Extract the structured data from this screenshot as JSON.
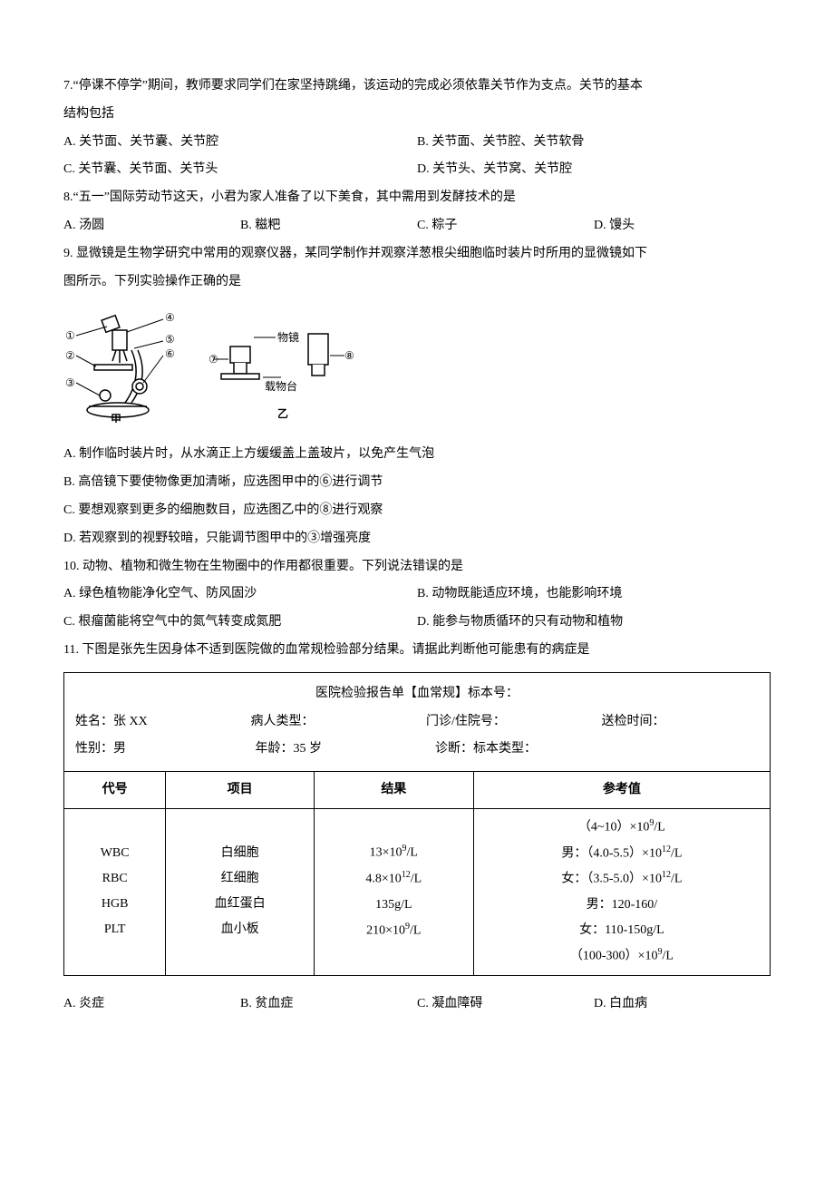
{
  "q7": {
    "stem_line1": "7.“停课不停学”期间，教师要求同学们在家坚持跳绳，该运动的完成必须依靠关节作为支点。关节的基本",
    "stem_line2": "结构包括",
    "optA": "A. 关节面、关节囊、关节腔",
    "optB": "B. 关节面、关节腔、关节软骨",
    "optC": "C. 关节囊、关节面、关节头",
    "optD": "D. 关节头、关节窝、关节腔"
  },
  "q8": {
    "stem": "8.“五一”国际劳动节这天，小君为家人准备了以下美食，其中需用到发酵技术的是",
    "optA": "A. 汤圆",
    "optB": "B. 糍粑",
    "optC": "C. 粽子",
    "optD": "D. 馒头"
  },
  "q9": {
    "stem_line1": "9. 显微镜是生物学研究中常用的观察仪器，某同学制作并观察洋葱根尖细胞临时装片时所用的显微镜如下",
    "stem_line2": "图所示。下列实验操作正确的是",
    "diagram": {
      "labels_left": [
        "①",
        "②",
        "③",
        "④",
        "⑤",
        "⑥"
      ],
      "labels_right": [
        "⑦",
        "⑧"
      ],
      "text_objective": "物镜",
      "text_stage": "载物台",
      "caption_left": "甲",
      "caption_right": "乙"
    },
    "optA": "A. 制作临时装片时，从水滴正上方缓缓盖上盖玻片，以免产生气泡",
    "optB": "B. 高倍镜下要使物像更加清晰，应选图甲中的⑥进行调节",
    "optC": "C. 要想观察到更多的细胞数目，应选图乙中的⑧进行观察",
    "optD": "D. 若观察到的视野较暗，只能调节图甲中的③增强亮度"
  },
  "q10": {
    "stem": "10. 动物、植物和微生物在生物圈中的作用都很重要。下列说法错误的是",
    "optA": "A. 绿色植物能净化空气、防风固沙",
    "optB": "B. 动物既能适应环境，也能影响环境",
    "optC": "C. 根瘤菌能将空气中的氮气转变成氮肥",
    "optD": "D. 能参与物质循环的只有动物和植物"
  },
  "q11": {
    "stem": "11. 下图是张先生因身体不适到医院做的血常规检验部分结果。请据此判断他可能患有的病症是",
    "report": {
      "title": "医院检验报告单【血常规】标本号：",
      "name_label": "姓名：张 XX",
      "patient_type_label": "病人类型：",
      "outpatient_label": "门诊/住院号：",
      "send_time_label": "送检时间：",
      "sex_label": "性别：男",
      "age_label": "年龄：35 岁",
      "diagnosis_label": "诊断：标本类型：",
      "columns": [
        "代号",
        "项目",
        "结果",
        "参考值"
      ],
      "codes": [
        "WBC",
        "RBC",
        "HGB",
        "PLT"
      ],
      "items": [
        "白细胞",
        "红细胞",
        "血红蛋白",
        "血小板"
      ],
      "results_html": [
        "13×10<sup>9</sup>/L",
        "4.8×10<sup>12</sup>/L",
        "135g/L",
        "210×10<sup>9</sup>/L"
      ],
      "refs_html": [
        "（4~10）×10<sup>9</sup>/L",
        "男：（4.0-5.5）×10<sup>12</sup>/L",
        "女：（3.5-5.0）×10<sup>12</sup>/L",
        "男：120-160/",
        "女：110-150g/L",
        "（100-300）×10<sup>9</sup>/L"
      ]
    },
    "optA": "A. 炎症",
    "optB": "B. 贫血症",
    "optC": "C. 凝血障碍",
    "optD": "D. 白血病"
  }
}
